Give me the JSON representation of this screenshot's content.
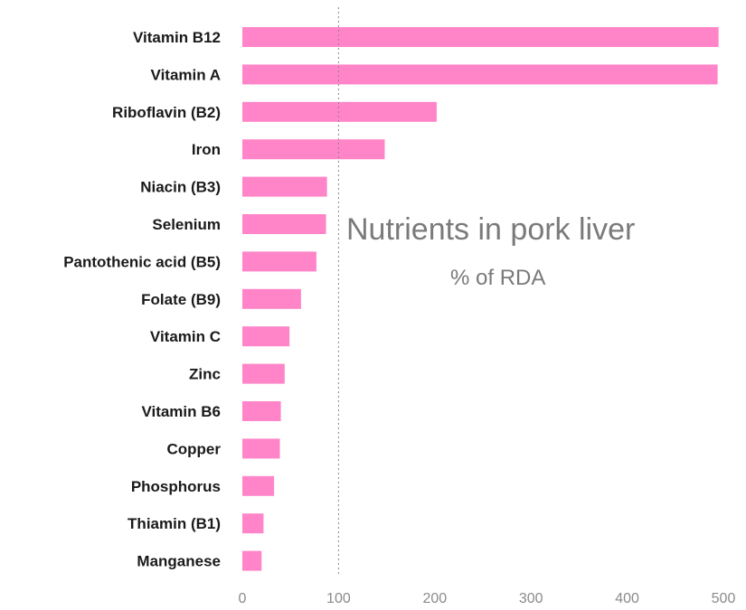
{
  "chart_data": {
    "type": "bar",
    "orientation": "horizontal",
    "title": "Nutrients in pork liver",
    "subtitle": "% of RDA",
    "categories": [
      "Vitamin B12",
      "Vitamin A",
      "Riboflavin (B2)",
      "Iron",
      "Niacin (B3)",
      "Selenium",
      "Pantothenic acid (B5)",
      "Folate (B9)",
      "Vitamin C",
      "Zinc",
      "Vitamin B6",
      "Copper",
      "Phosphorus",
      "Thiamin (B1)",
      "Manganese"
    ],
    "values": [
      495,
      494,
      202,
      148,
      88,
      87,
      77,
      61,
      49,
      44,
      40,
      39,
      33,
      22,
      20
    ],
    "xlim": [
      0,
      500
    ],
    "ticks": [
      0,
      100,
      200,
      300,
      400,
      500
    ],
    "reference_line": 100,
    "bar_color": "#ff85c8",
    "reference_line_color": "#888888",
    "grid": false,
    "legend": "none"
  }
}
